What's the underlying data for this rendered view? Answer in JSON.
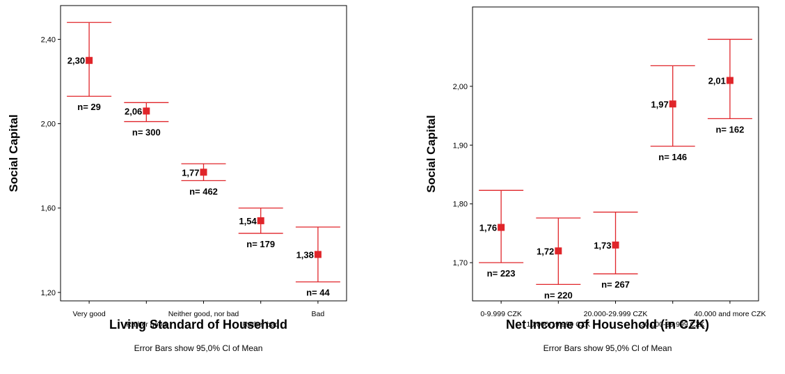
{
  "chart_data": [
    {
      "type": "errorbar",
      "ylabel": "Social Capital",
      "xlabel": "Living Standard of Household",
      "footnote": "Error Bars show 95,0% Cl of Mean",
      "ylim": [
        1.16,
        2.56
      ],
      "yticks": [
        1.2,
        1.6,
        2.0,
        2.4
      ],
      "ytick_labels": [
        "1,20",
        "1,60",
        "2,00",
        "2,40"
      ],
      "categories": [
        "Very good",
        "Rather good",
        "Neither good, nor bad",
        "Rather bad",
        "Bad"
      ],
      "category_rows": [
        0,
        1,
        0,
        1,
        0
      ],
      "values": [
        2.3,
        2.06,
        1.77,
        1.54,
        1.38
      ],
      "value_labels": [
        "2,30",
        "2,06",
        "1,77",
        "1,54",
        "1,38"
      ],
      "ci_low": [
        2.13,
        2.01,
        1.73,
        1.48,
        1.25
      ],
      "ci_high": [
        2.48,
        2.1,
        1.81,
        1.6,
        1.51
      ],
      "n_labels": [
        "n= 29",
        "n= 300",
        "n= 462",
        "n= 179",
        "n= 44"
      ],
      "color": "#e0252a",
      "grid": false,
      "legend": "none"
    },
    {
      "type": "errorbar",
      "ylabel": "Social Capital",
      "xlabel": "Net Income of Household (in CZK)",
      "footnote": "Error Bars show 95,0% Cl of Mean",
      "ylim": [
        1.635,
        2.135
      ],
      "yticks": [
        1.7,
        1.8,
        1.9,
        2.0
      ],
      "ytick_labels": [
        "1,70",
        "1,80",
        "1,90",
        "2,00"
      ],
      "categories": [
        "0-9.999 CZK",
        "10.000-19.999 CZK",
        "20.000-29.999 CZK",
        "30.000-39.999 CZK",
        "40.000 and more CZK"
      ],
      "category_rows": [
        0,
        1,
        0,
        1,
        0
      ],
      "values": [
        1.76,
        1.72,
        1.73,
        1.97,
        2.01
      ],
      "value_labels": [
        "1,76",
        "1,72",
        "1,73",
        "1,97",
        "2,01"
      ],
      "ci_low": [
        1.7,
        1.663,
        1.681,
        1.898,
        1.945
      ],
      "ci_high": [
        1.823,
        1.776,
        1.786,
        2.035,
        2.08
      ],
      "n_labels": [
        "n= 223",
        "n= 220",
        "n= 267",
        "n= 146",
        "n= 162"
      ],
      "color": "#e0252a",
      "grid": false,
      "legend": "none"
    }
  ]
}
